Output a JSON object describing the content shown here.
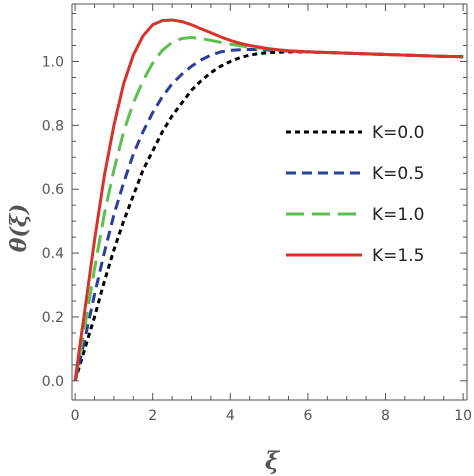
{
  "chart_data": {
    "type": "line",
    "title": "",
    "xlabel": "ξ",
    "ylabel": "θ(ξ)",
    "xlim": [
      -0.08,
      10.1
    ],
    "ylim": [
      -0.06,
      1.18
    ],
    "x_ticks": [
      0,
      2,
      4,
      6,
      8,
      10
    ],
    "x_tick_labels": [
      "0",
      "2",
      "4",
      "6",
      "8",
      "10"
    ],
    "x_minor_step": 0.5,
    "y_ticks": [
      0.0,
      0.2,
      0.4,
      0.6,
      0.8,
      1.0
    ],
    "y_tick_labels": [
      "0.0",
      "0.2",
      "0.4",
      "0.6",
      "0.8",
      "1.0"
    ],
    "y_minor_step": 0.05,
    "grid": false,
    "legend_position": "right",
    "series": [
      {
        "name": "K=0.0",
        "color": "#000000",
        "dash": "short-dash",
        "x": [
          0,
          0.1,
          0.25,
          0.5,
          0.75,
          1,
          1.25,
          1.5,
          1.75,
          2,
          2.25,
          2.5,
          2.75,
          3,
          3.25,
          3.5,
          3.75,
          4,
          4.25,
          4.5,
          4.75,
          5,
          5.5,
          6,
          6.5,
          7,
          7.5,
          8,
          8.5,
          9,
          9.5,
          10
        ],
        "y": [
          0,
          0.04,
          0.1,
          0.2,
          0.31,
          0.41,
          0.5,
          0.58,
          0.66,
          0.72,
          0.78,
          0.83,
          0.87,
          0.91,
          0.94,
          0.965,
          0.985,
          1.0,
          1.012,
          1.02,
          1.025,
          1.028,
          1.03,
          1.03,
          1.028,
          1.026,
          1.024,
          1.022,
          1.02,
          1.018,
          1.016,
          1.015
        ]
      },
      {
        "name": "K=0.5",
        "color": "#2a3e9a",
        "dash": "medium-dash",
        "x": [
          0,
          0.1,
          0.25,
          0.5,
          0.75,
          1,
          1.25,
          1.5,
          1.75,
          2,
          2.25,
          2.5,
          2.75,
          3,
          3.25,
          3.5,
          3.75,
          4,
          4.5,
          5,
          5.5,
          6,
          6.5,
          7,
          7.5,
          8,
          8.5,
          9,
          9.5,
          10
        ],
        "y": [
          0,
          0.05,
          0.13,
          0.27,
          0.4,
          0.52,
          0.62,
          0.71,
          0.78,
          0.84,
          0.89,
          0.93,
          0.96,
          0.985,
          1.005,
          1.02,
          1.03,
          1.035,
          1.038,
          1.036,
          1.033,
          1.03,
          1.028,
          1.026,
          1.024,
          1.022,
          1.02,
          1.018,
          1.016,
          1.015
        ]
      },
      {
        "name": "K=1.0",
        "color": "#5bc04f",
        "dash": "long-dash",
        "x": [
          0,
          0.1,
          0.25,
          0.5,
          0.75,
          1,
          1.25,
          1.5,
          1.75,
          2,
          2.25,
          2.5,
          2.75,
          3,
          3.25,
          3.5,
          3.75,
          4,
          4.5,
          5,
          5.5,
          6,
          6.5,
          7,
          7.5,
          8,
          8.5,
          9,
          9.5,
          10
        ],
        "y": [
          0,
          0.07,
          0.17,
          0.35,
          0.52,
          0.66,
          0.78,
          0.87,
          0.94,
          0.995,
          1.035,
          1.06,
          1.072,
          1.075,
          1.072,
          1.066,
          1.06,
          1.054,
          1.045,
          1.039,
          1.034,
          1.031,
          1.028,
          1.026,
          1.024,
          1.022,
          1.02,
          1.018,
          1.016,
          1.015
        ]
      },
      {
        "name": "K=1.5",
        "color": "#d8332a",
        "dash": "solid",
        "x": [
          0,
          0.1,
          0.25,
          0.5,
          0.75,
          1,
          1.25,
          1.5,
          1.75,
          2,
          2.25,
          2.5,
          2.75,
          3,
          3.25,
          3.5,
          3.75,
          4,
          4.25,
          4.5,
          5,
          5.5,
          6,
          6.5,
          7,
          7.5,
          8,
          8.5,
          9,
          9.5,
          10
        ],
        "y": [
          0,
          0.09,
          0.22,
          0.44,
          0.64,
          0.8,
          0.93,
          1.02,
          1.08,
          1.115,
          1.128,
          1.13,
          1.125,
          1.115,
          1.102,
          1.09,
          1.077,
          1.066,
          1.057,
          1.05,
          1.04,
          1.033,
          1.03,
          1.028,
          1.026,
          1.024,
          1.022,
          1.02,
          1.018,
          1.016,
          1.015
        ]
      }
    ]
  }
}
